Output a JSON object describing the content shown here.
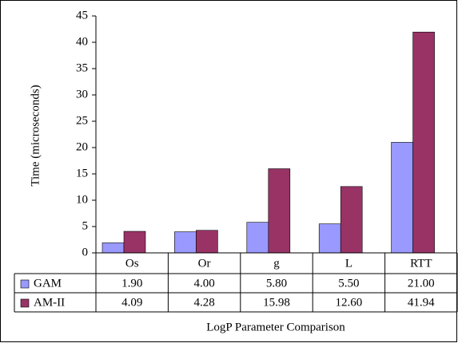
{
  "chart_data": {
    "type": "bar",
    "x_label": "LogP Parameter Comparison",
    "y_label": "Time (microseconds)",
    "categories": [
      "Os",
      "Or",
      "g",
      "L",
      "RTT"
    ],
    "series": [
      {
        "name": "GAM",
        "color": "#9999ff",
        "values": [
          1.9,
          4.0,
          5.8,
          5.5,
          21.0
        ],
        "value_labels": [
          "1.90",
          "4.00",
          "5.80",
          "5.50",
          "21.00"
        ]
      },
      {
        "name": "AM-II",
        "color": "#993366",
        "values": [
          4.09,
          4.28,
          15.98,
          12.6,
          41.94
        ],
        "value_labels": [
          "4.09",
          "4.28",
          "15.98",
          "12.60",
          "41.94"
        ]
      }
    ],
    "ylim": [
      0,
      45
    ],
    "yticks": [
      0,
      5,
      10,
      15,
      20,
      25,
      30,
      35,
      40,
      45
    ],
    "grid": false
  }
}
